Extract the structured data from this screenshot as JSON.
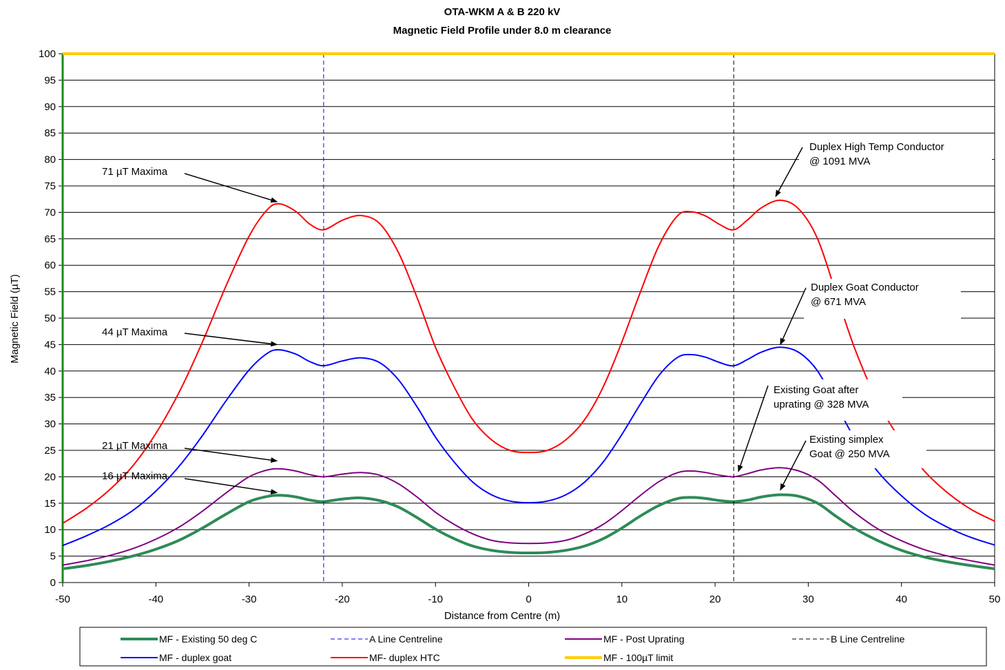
{
  "chart_data": {
    "type": "line",
    "title": "OTA-WKM A & B 220 kV",
    "subtitle": "Magnetic Field Profile under 8.0 m clearance",
    "xlabel": "Distance from Centre (m)",
    "ylabel": "Magnetic Field (µT)",
    "xlim": [
      -50,
      50
    ],
    "ylim": [
      0,
      100
    ],
    "x_ticks": [
      "-50",
      "-40",
      "-30",
      "-20",
      "-10",
      "0",
      "10",
      "20",
      "30",
      "40",
      "50"
    ],
    "y_ticks": [
      "0",
      "5",
      "10",
      "15",
      "20",
      "25",
      "30",
      "35",
      "40",
      "45",
      "50",
      "55",
      "60",
      "65",
      "70",
      "75",
      "80",
      "85",
      "90",
      "95",
      "100"
    ],
    "grid": "horizontal",
    "legend_position": "bottom",
    "x": [
      -50,
      -47.5,
      -45,
      -42.5,
      -40,
      -37.5,
      -35,
      -32.5,
      -30,
      -28,
      -26.7,
      -25,
      -23.5,
      -22,
      -20,
      -18,
      -16,
      -14,
      -12,
      -10,
      -8,
      -6,
      -4,
      -2,
      0,
      2,
      4,
      6,
      8,
      10,
      12,
      14,
      16,
      17.5,
      19,
      20.5,
      22,
      23.5,
      25,
      27,
      29,
      31,
      33,
      35,
      37.5,
      40,
      42.5,
      45,
      47.5,
      50
    ],
    "series": [
      {
        "name": "MF - Existing 50 deg C",
        "color": "#2e8b57",
        "width": 4,
        "dash": "",
        "values": [
          2.6,
          3.2,
          4.0,
          5.0,
          6.3,
          8.0,
          10.3,
          12.9,
          15.3,
          16.3,
          16.5,
          16.2,
          15.6,
          15.3,
          15.8,
          16.0,
          15.5,
          14.3,
          12.3,
          10.1,
          8.3,
          6.9,
          6.1,
          5.7,
          5.6,
          5.7,
          6.1,
          6.9,
          8.3,
          10.3,
          12.6,
          14.6,
          15.9,
          16.1,
          15.9,
          15.5,
          15.3,
          15.6,
          16.2,
          16.6,
          16.3,
          15.0,
          12.5,
          10.2,
          7.9,
          6.1,
          4.8,
          3.9,
          3.2,
          2.6
        ]
      },
      {
        "name": "A Line Centreline",
        "color": "#0000ff",
        "width": 1,
        "dash": "6,4",
        "vertical_at": -22
      },
      {
        "name": "MF - Post Uprating",
        "color": "#800080",
        "width": 2,
        "dash": "",
        "values": [
          3.3,
          4.1,
          5.1,
          6.4,
          8.2,
          10.5,
          13.5,
          16.9,
          20.0,
          21.3,
          21.5,
          21.1,
          20.4,
          20.0,
          20.5,
          20.8,
          20.3,
          18.7,
          16.2,
          13.3,
          11.0,
          9.2,
          8.0,
          7.5,
          7.4,
          7.5,
          8.0,
          9.2,
          11.0,
          13.6,
          16.5,
          19.1,
          20.8,
          21.1,
          20.8,
          20.3,
          20.0,
          20.6,
          21.3,
          21.7,
          21.1,
          19.4,
          16.3,
          13.2,
          10.1,
          7.9,
          6.2,
          5.0,
          4.1,
          3.3
        ]
      },
      {
        "name": "B Line Centreline",
        "color": "#000000",
        "width": 1,
        "dash": "6,4",
        "vertical_at": 22
      },
      {
        "name": "MF - duplex goat",
        "color": "#0000ff",
        "width": 2,
        "dash": "",
        "values": [
          7.0,
          8.8,
          10.9,
          13.6,
          17.3,
          22.0,
          27.8,
          34.3,
          40.2,
          43.4,
          44.0,
          43.2,
          41.8,
          41.0,
          41.9,
          42.5,
          41.6,
          38.4,
          33.3,
          27.5,
          22.8,
          19.0,
          16.6,
          15.4,
          15.1,
          15.4,
          16.6,
          19.0,
          22.8,
          28.0,
          33.8,
          39.2,
          42.6,
          43.1,
          42.6,
          41.6,
          41.0,
          42.2,
          43.6,
          44.5,
          43.5,
          40.0,
          33.6,
          27.2,
          20.9,
          16.4,
          12.9,
          10.4,
          8.5,
          7.1
        ]
      },
      {
        "name": "MF- duplex HTC",
        "color": "#ff0000",
        "width": 2,
        "dash": "",
        "values": [
          11.2,
          14.0,
          17.5,
          22.0,
          28.2,
          36.0,
          45.5,
          56.0,
          65.5,
          70.6,
          71.6,
          70.2,
          67.8,
          66.7,
          68.5,
          69.4,
          67.9,
          62.5,
          54.0,
          44.5,
          37.0,
          30.8,
          27.0,
          25.0,
          24.6,
          25.0,
          27.0,
          30.8,
          37.0,
          45.5,
          55.0,
          63.8,
          69.4,
          70.1,
          69.3,
          67.7,
          66.7,
          68.6,
          70.9,
          72.3,
          70.6,
          65.0,
          54.6,
          44.2,
          34.0,
          26.7,
          21.0,
          16.9,
          13.8,
          11.6
        ]
      },
      {
        "name": "MF - 100µT limit",
        "color": "#ffcc00",
        "width": 4,
        "dash": "",
        "constant": 100
      }
    ],
    "annotations": [
      {
        "lines": [
          "71 µT Maxima"
        ],
        "points_to": [
          -27,
          72
        ]
      },
      {
        "lines": [
          "44 µT Maxima"
        ],
        "points_to": [
          -27,
          45
        ]
      },
      {
        "lines": [
          "21 µT Maxima"
        ],
        "points_to": [
          -27,
          23
        ]
      },
      {
        "lines": [
          "16 µT Maxima"
        ],
        "points_to": [
          -27,
          17
        ]
      },
      {
        "lines": [
          "Duplex High Temp Conductor",
          "@ 1091 MVA"
        ],
        "points_to": [
          26.5,
          73
        ]
      },
      {
        "lines": [
          "Duplex Goat Conductor",
          "@  671 MVA"
        ],
        "points_to": [
          27,
          45
        ]
      },
      {
        "lines": [
          "Existing Goat after",
          "uprating @  328 MVA"
        ],
        "points_to": [
          22.5,
          21
        ]
      },
      {
        "lines": [
          "Existing simplex",
          "Goat  @  250 MVA"
        ],
        "points_to": [
          27,
          17.5
        ]
      }
    ]
  }
}
